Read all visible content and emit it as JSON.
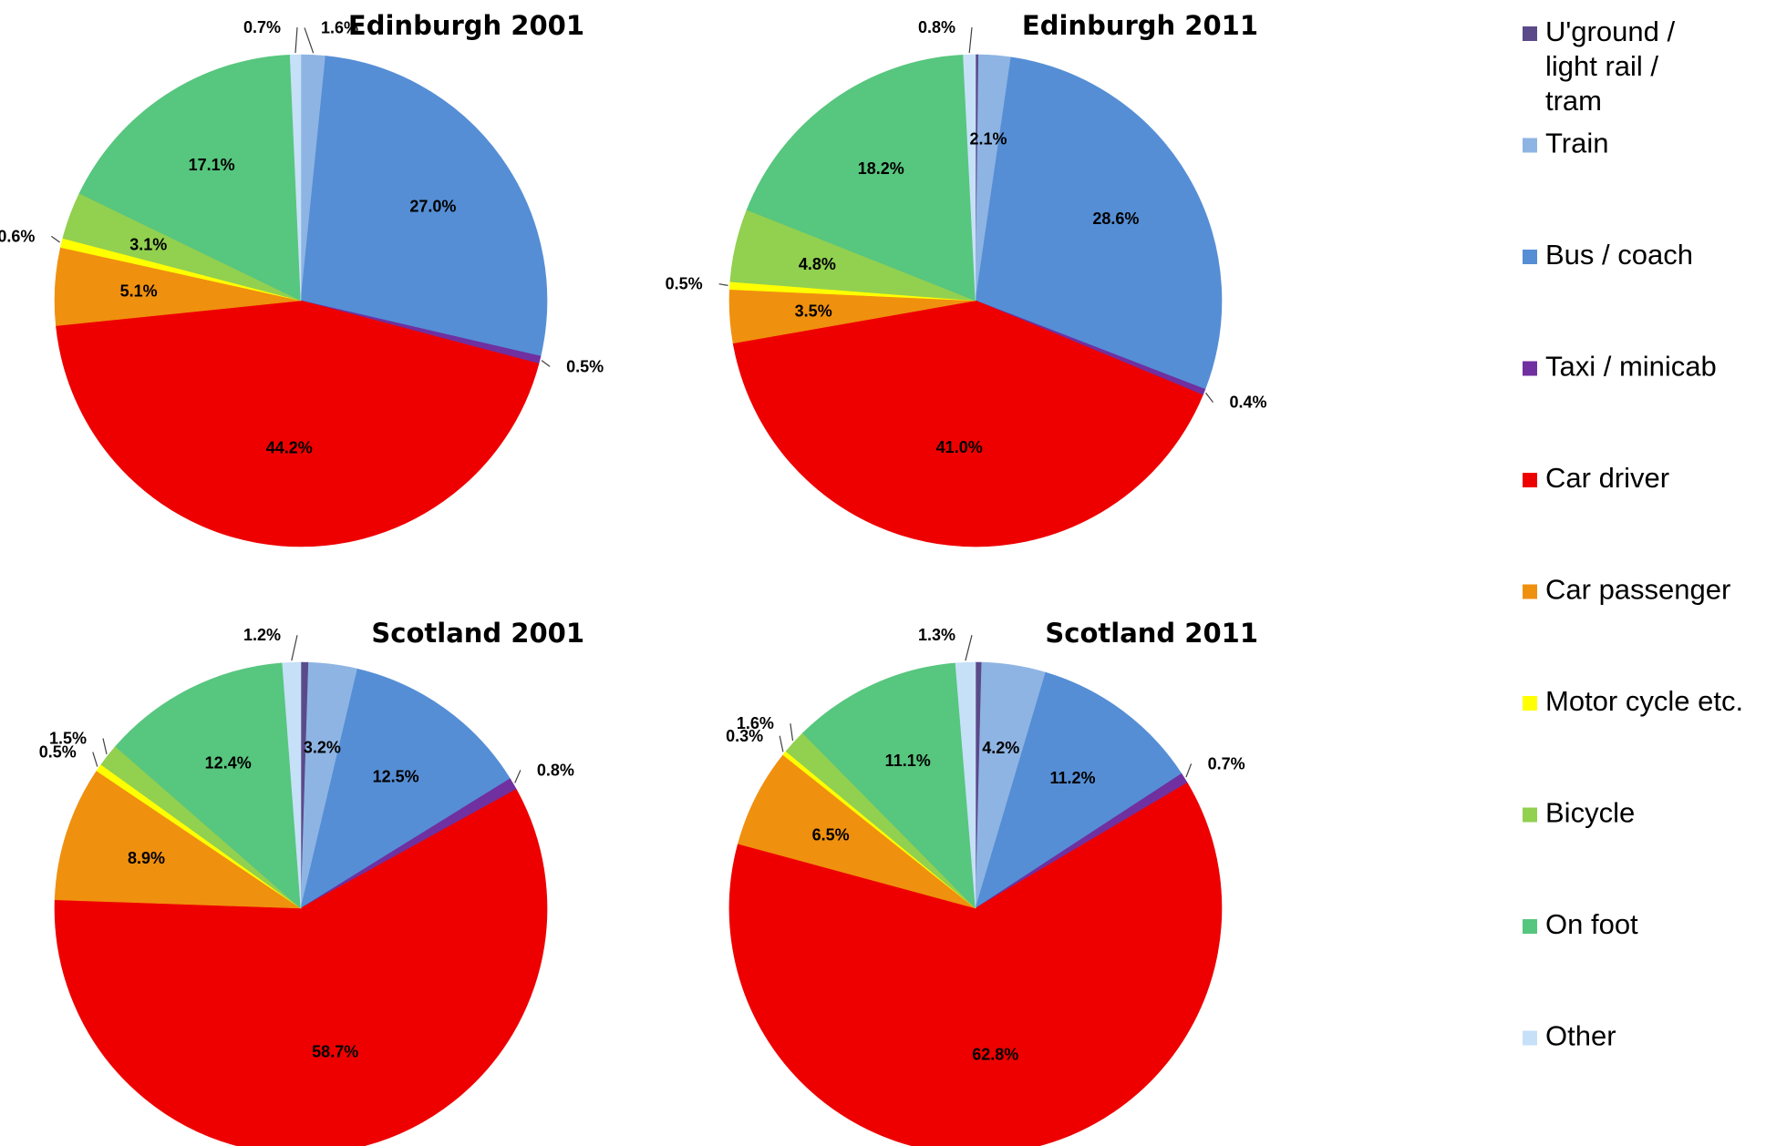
{
  "chart_data": {
    "type": "pie",
    "categories": [
      "U'ground / light rail / tram",
      "Train",
      "Bus / coach",
      "Taxi / minicab",
      "Car driver",
      "Car passenger",
      "Motor cycle etc.",
      "Bicycle",
      "On foot",
      "Other"
    ],
    "colors": [
      "#5b4a8a",
      "#8eb4e3",
      "#558ed5",
      "#7030a0",
      "#ee0000",
      "#f0900f",
      "#ffff00",
      "#92d050",
      "#57c67e",
      "#c6e0f8"
    ],
    "legend_position": "right",
    "charts": [
      {
        "title": "Edinburgh 2001",
        "values": [
          0.0,
          1.6,
          27.0,
          0.5,
          44.2,
          5.1,
          0.6,
          3.1,
          17.1,
          0.7
        ],
        "labels": [
          "",
          "1.6%",
          "27.0%",
          "0.5%",
          "44.2%",
          "5.1%",
          "0.6%",
          "3.1%",
          "17.1%",
          "0.7%"
        ]
      },
      {
        "title": "Edinburgh 2011",
        "values": [
          0.2,
          2.1,
          28.6,
          0.4,
          41.0,
          3.5,
          0.5,
          4.8,
          18.2,
          0.8
        ],
        "labels": [
          "",
          "2.1%",
          "28.6%",
          "0.4%",
          "41.0%",
          "3.5%",
          "0.5%",
          "4.8%",
          "18.2%",
          "0.8%"
        ]
      },
      {
        "title": "Scotland 2001",
        "values": [
          0.5,
          3.2,
          12.5,
          0.8,
          58.7,
          8.9,
          0.5,
          1.5,
          12.4,
          1.2
        ],
        "labels": [
          "",
          "3.2%",
          "12.5%",
          "0.8%",
          "58.7%",
          "8.9%",
          "0.5%",
          "1.5%",
          "12.4%",
          "1.2%"
        ]
      },
      {
        "title": "Scotland 2011",
        "values": [
          0.4,
          4.2,
          11.2,
          0.7,
          62.8,
          6.5,
          0.3,
          1.6,
          11.1,
          1.3
        ],
        "labels": [
          "",
          "4.2%",
          "11.2%",
          "0.7%",
          "62.8%",
          "6.5%",
          "0.3%",
          "1.6%",
          "11.1%",
          "1.3%"
        ]
      }
    ]
  }
}
